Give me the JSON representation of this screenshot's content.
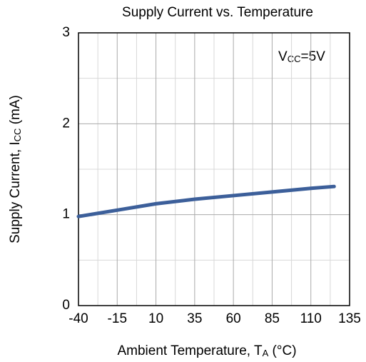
{
  "chart_data": {
    "type": "line",
    "title": "Supply Current vs. Temperature",
    "xlabel": {
      "text": "Ambient Temperature, T",
      "sub": "A",
      "rest": " (°C)"
    },
    "ylabel": {
      "text": "Supply Current, I",
      "sub": "CC",
      "rest": " (mA)"
    },
    "annotation": {
      "text": "V",
      "sub": "CC",
      "rest": "=5V"
    },
    "x": [
      -40,
      -15,
      10,
      35,
      60,
      85,
      110,
      125
    ],
    "series": [
      {
        "color": "#3c5f9a",
        "values": [
          0.98,
          1.05,
          1.12,
          1.17,
          1.21,
          1.25,
          1.29,
          1.31
        ]
      }
    ],
    "xlim": [
      -40,
      135
    ],
    "xticks": [
      -40,
      -15,
      10,
      35,
      60,
      85,
      110,
      135
    ],
    "xminorticks": [
      -27.5,
      -2.5,
      22.5,
      47.5,
      72.5,
      97.5,
      122.5
    ],
    "ylim": [
      0,
      3
    ],
    "yticks": [
      0,
      1,
      2,
      3
    ],
    "yminorticks": [
      0.5,
      1.5,
      2.5
    ],
    "grid": true
  }
}
